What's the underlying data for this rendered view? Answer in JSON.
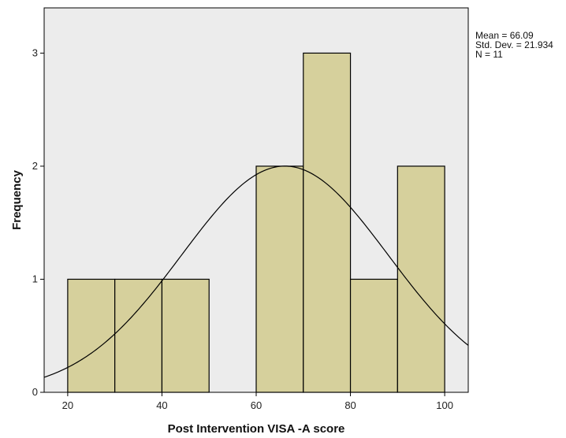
{
  "chart_data": {
    "type": "bar",
    "subtype": "histogram",
    "xlabel": "Post Intervention VISA -A score",
    "ylabel": "Frequency",
    "xlim": [
      15,
      105
    ],
    "ylim": [
      0,
      3.4
    ],
    "x_ticks": [
      20,
      40,
      60,
      80,
      100
    ],
    "y_ticks": [
      0,
      1,
      2,
      3
    ],
    "bins": [
      {
        "start": 20,
        "end": 30,
        "count": 1
      },
      {
        "start": 30,
        "end": 40,
        "count": 1
      },
      {
        "start": 40,
        "end": 50,
        "count": 1
      },
      {
        "start": 60,
        "end": 70,
        "count": 2
      },
      {
        "start": 70,
        "end": 80,
        "count": 3
      },
      {
        "start": 80,
        "end": 90,
        "count": 1
      },
      {
        "start": 90,
        "end": 100,
        "count": 2
      }
    ],
    "normal_curve": {
      "mean": 66.09,
      "std_dev": 21.934,
      "n": 11,
      "bin_width": 10
    },
    "stats_text": [
      "Mean = 66.09",
      "Std. Dev. = 21.934",
      "N = 11"
    ],
    "colors": {
      "bar_fill": "#d6d09c",
      "plot_bg": "#ececec",
      "bar_stroke": "#000000",
      "curve": "#000000"
    },
    "grid": false,
    "legend": "none"
  }
}
